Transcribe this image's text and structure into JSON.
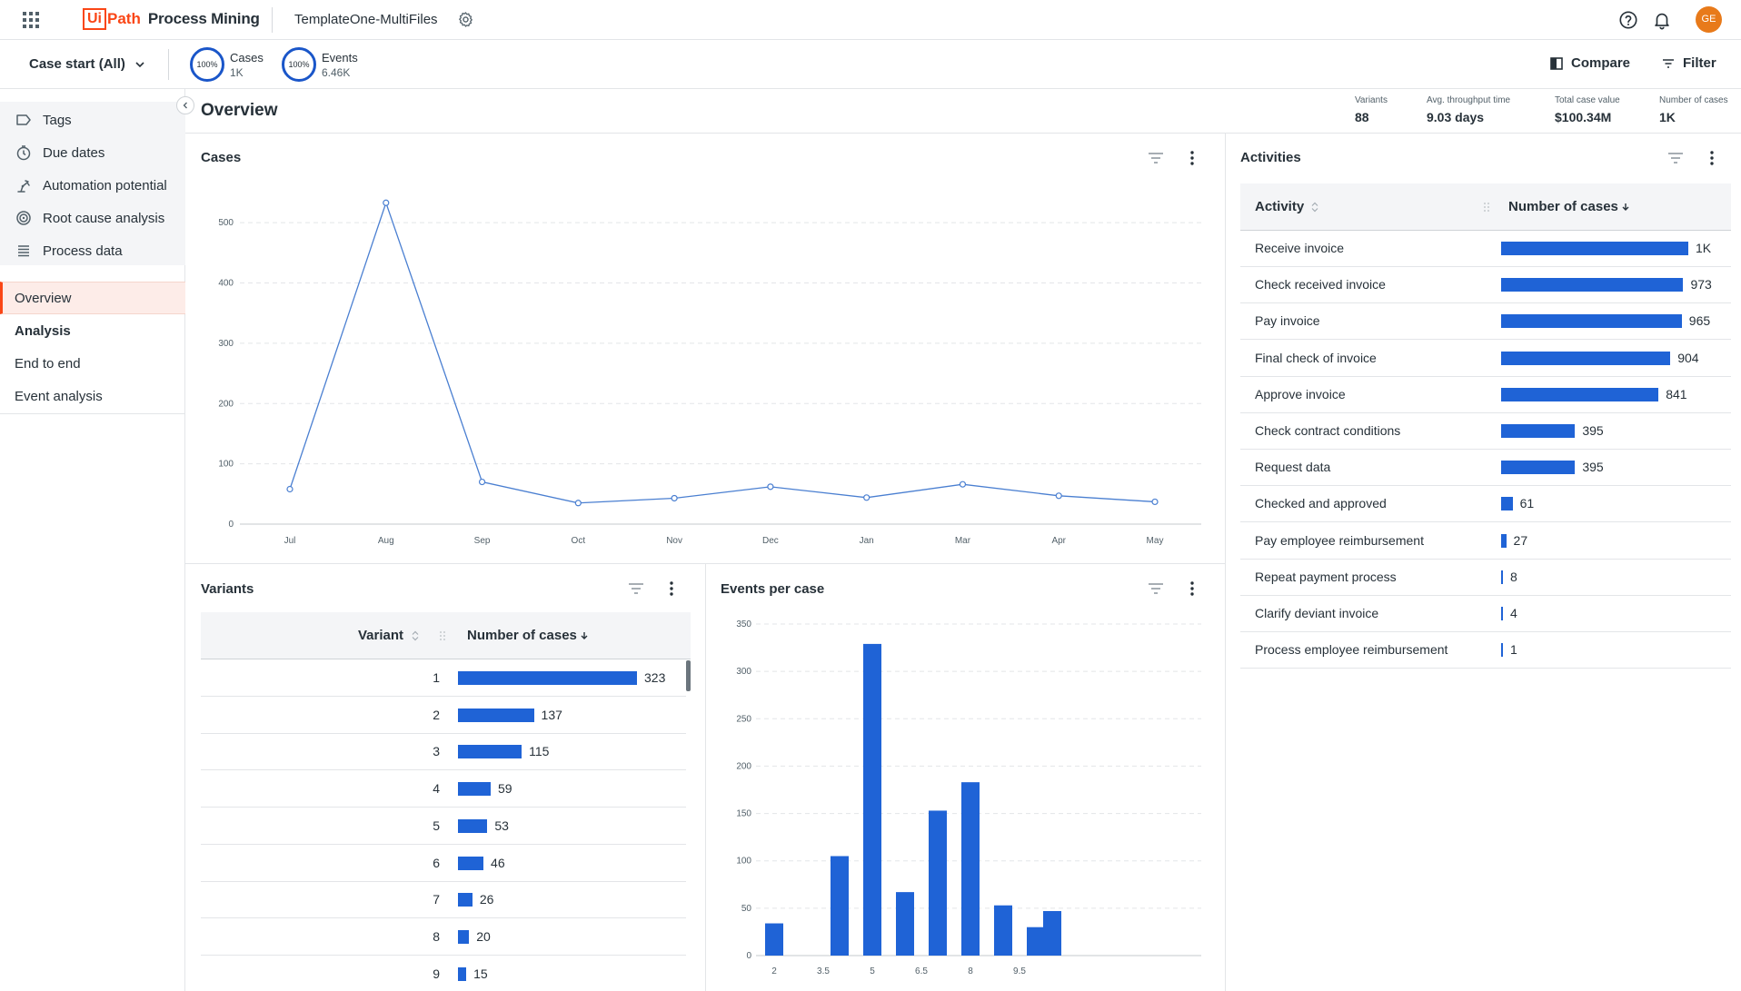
{
  "header": {
    "logo_box": "Ui",
    "logo_rest": "Path",
    "product": "Process Mining",
    "app_name": "TemplateOne-MultiFiles",
    "avatar_initials": "GE"
  },
  "filterbar": {
    "case_start": "Case start (All)",
    "cases": {
      "ring": "100%",
      "label": "Cases",
      "value": "1K"
    },
    "events": {
      "ring": "100%",
      "label": "Events",
      "value": "6.46K"
    },
    "compare_label": "Compare",
    "filter_label": "Filter"
  },
  "sidebar": {
    "tools": [
      {
        "label": "Tags",
        "icon": "tag-icon"
      },
      {
        "label": "Due dates",
        "icon": "clock-icon"
      },
      {
        "label": "Automation potential",
        "icon": "robot-arm-icon"
      },
      {
        "label": "Root cause analysis",
        "icon": "target-icon"
      },
      {
        "label": "Process data",
        "icon": "list-icon"
      }
    ],
    "nav": [
      {
        "label": "Overview",
        "active": true
      },
      {
        "label": "Analysis",
        "bold": true
      },
      {
        "label": "End to end"
      },
      {
        "label": "Event analysis"
      }
    ]
  },
  "overview": {
    "title": "Overview",
    "kpis": [
      {
        "label": "Variants",
        "value": "88"
      },
      {
        "label": "Avg. throughput time",
        "value": "9.03 days"
      },
      {
        "label": "Total case value",
        "value": "$100.34M"
      },
      {
        "label": "Number of cases",
        "value": "1K"
      }
    ]
  },
  "cases_panel": {
    "title": "Cases"
  },
  "variants_panel": {
    "title": "Variants",
    "col_variant": "Variant",
    "col_cases": "Number of cases",
    "rows": [
      {
        "variant": "1",
        "value": 323,
        "label": "323"
      },
      {
        "variant": "2",
        "value": 137,
        "label": "137"
      },
      {
        "variant": "3",
        "value": 115,
        "label": "115"
      },
      {
        "variant": "4",
        "value": 59,
        "label": "59"
      },
      {
        "variant": "5",
        "value": 53,
        "label": "53"
      },
      {
        "variant": "6",
        "value": 46,
        "label": "46"
      },
      {
        "variant": "7",
        "value": 26,
        "label": "26"
      },
      {
        "variant": "8",
        "value": 20,
        "label": "20"
      },
      {
        "variant": "9",
        "value": 15,
        "label": "15"
      }
    ]
  },
  "events_panel": {
    "title": "Events per case"
  },
  "activities_panel": {
    "title": "Activities",
    "col_activity": "Activity",
    "col_cases": "Number of cases",
    "rows": [
      {
        "activity": "Receive invoice",
        "value": 1000,
        "label": "1K"
      },
      {
        "activity": "Check received invoice",
        "value": 973,
        "label": "973"
      },
      {
        "activity": "Pay invoice",
        "value": 965,
        "label": "965"
      },
      {
        "activity": "Final check of invoice",
        "value": 904,
        "label": "904"
      },
      {
        "activity": "Approve invoice",
        "value": 841,
        "label": "841"
      },
      {
        "activity": "Check contract conditions",
        "value": 395,
        "label": "395"
      },
      {
        "activity": "Request data",
        "value": 395,
        "label": "395"
      },
      {
        "activity": "Checked and approved",
        "value": 61,
        "label": "61"
      },
      {
        "activity": "Pay employee reimbursement",
        "value": 27,
        "label": "27"
      },
      {
        "activity": "Repeat payment process",
        "value": 8,
        "label": "8"
      },
      {
        "activity": "Clarify deviant invoice",
        "value": 4,
        "label": "4"
      },
      {
        "activity": "Process employee reimbursement",
        "value": 1,
        "label": "1"
      }
    ]
  },
  "chart_data": [
    {
      "type": "line",
      "title": "Cases",
      "categories": [
        "Jul",
        "Aug",
        "Sep",
        "Oct",
        "Nov",
        "Dec",
        "Jan",
        "Mar",
        "Apr",
        "May"
      ],
      "values": [
        58,
        533,
        70,
        35,
        43,
        62,
        44,
        66,
        47,
        37
      ],
      "yticks": [
        0,
        100,
        200,
        300,
        400,
        500
      ],
      "ylim": [
        0,
        550
      ],
      "grid": true,
      "color": "#4a7fd1"
    },
    {
      "type": "bar",
      "title": "Events per case",
      "x": [
        2,
        4,
        5,
        6,
        7,
        8,
        9,
        10,
        10.5
      ],
      "values": [
        34,
        105,
        329,
        67,
        153,
        183,
        53,
        30,
        47
      ],
      "xticks": [
        "2",
        "3.5",
        "5",
        "6.5",
        "8",
        "9.5"
      ],
      "xtick_values": [
        2,
        3.5,
        5,
        6.5,
        8,
        9.5
      ],
      "yticks": [
        0,
        50,
        100,
        150,
        200,
        250,
        300,
        350
      ],
      "ylim": [
        0,
        350
      ],
      "grid": true,
      "color": "#1f63d6"
    }
  ]
}
